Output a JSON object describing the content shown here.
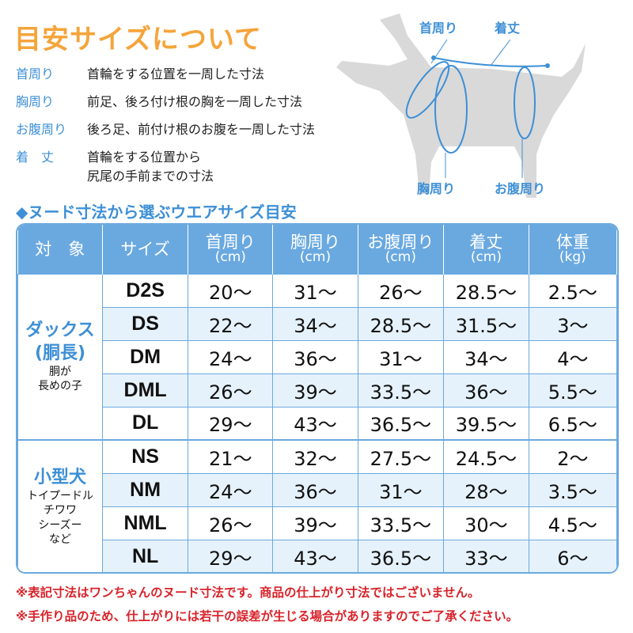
{
  "title": "目安サイズについて",
  "definitions": [
    {
      "term": "首周り",
      "desc": "首輪をする位置を一周した寸法"
    },
    {
      "term": "胸周り",
      "desc": "前足、後ろ付け根の胸を一周した寸法"
    },
    {
      "term": "お腹周り",
      "desc": "後ろ足、前付け根のお腹を一周した寸法"
    },
    {
      "term": "着　丈",
      "desc": "首輪をする位置から",
      "desc2": "尻尾の手前までの寸法"
    }
  ],
  "diagram": {
    "neck": "首周り",
    "length": "着丈",
    "chest": "胸周り",
    "belly": "お腹周り"
  },
  "subtitle": "◆ヌード寸法から選ぶウエアサイズ目安",
  "table": {
    "headers": [
      {
        "l": "対　象"
      },
      {
        "l": "サイズ"
      },
      {
        "l": "首周り",
        "u": "(cm)"
      },
      {
        "l": "胸周り",
        "u": "(cm)"
      },
      {
        "l": "お腹周り",
        "u": "(cm)"
      },
      {
        "l": "着丈",
        "u": "(cm)"
      },
      {
        "l": "体重",
        "u": "(kg)"
      }
    ],
    "groups": [
      {
        "name": "ダックス",
        "name2": "(胴長)",
        "desc": "胴が",
        "desc2": "長めの子",
        "rows": [
          [
            "D2S",
            "20〜",
            "31〜",
            "26〜",
            "28.5〜",
            "2.5〜"
          ],
          [
            "DS",
            "22〜",
            "34〜",
            "28.5〜",
            "31.5〜",
            "3〜"
          ],
          [
            "DM",
            "24〜",
            "36〜",
            "31〜",
            "34〜",
            "4〜"
          ],
          [
            "DML",
            "26〜",
            "39〜",
            "33.5〜",
            "36〜",
            "5.5〜"
          ],
          [
            "DL",
            "29〜",
            "43〜",
            "36.5〜",
            "39.5〜",
            "6.5〜"
          ]
        ]
      },
      {
        "name": "小型犬",
        "desc": "トイプードル",
        "desc2": "チワワ",
        "desc3": "シーズー",
        "desc4": "など",
        "rows": [
          [
            "NS",
            "21〜",
            "32〜",
            "27.5〜",
            "24.5〜",
            "2〜"
          ],
          [
            "NM",
            "24〜",
            "36〜",
            "31〜",
            "28〜",
            "3.5〜"
          ],
          [
            "NML",
            "26〜",
            "39〜",
            "33.5〜",
            "30〜",
            "4.5〜"
          ],
          [
            "NL",
            "29〜",
            "43〜",
            "36.5〜",
            "33〜",
            "6〜"
          ]
        ]
      }
    ]
  },
  "notes": [
    "※表記寸法はワンちゃんのヌード寸法です。商品の仕上がり寸法ではございません。",
    "※手作り品のため、仕上がりには若干の誤差が生じる場合がありますのでご了承ください。"
  ],
  "colors": {
    "title": "#f5a43a",
    "accent": "#3d8fd6",
    "header": "#6aa9e0",
    "note": "#d8232a",
    "dog": "#d9d9d9"
  }
}
